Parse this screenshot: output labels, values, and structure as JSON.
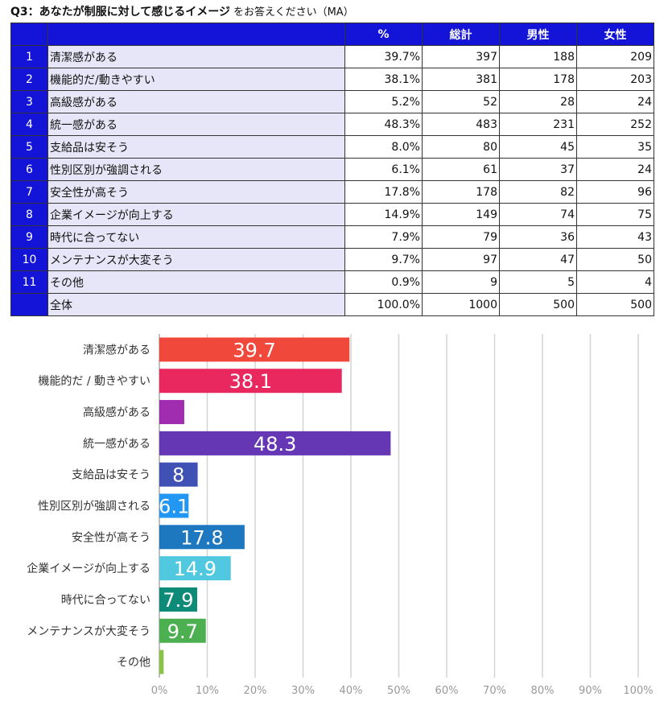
{
  "title": {
    "main": "Q3：あなたが制服に対して感じるイメージ",
    "sub": "をお答えください（MA）"
  },
  "table": {
    "headers": [
      "%",
      "総計",
      "男性",
      "女性"
    ],
    "rows": [
      {
        "no": "1",
        "label": "清潔感がある",
        "pct": "39.7%",
        "total": "397",
        "male": "188",
        "female": "209"
      },
      {
        "no": "2",
        "label": "機能的だ/動きやすい",
        "pct": "38.1%",
        "total": "381",
        "male": "178",
        "female": "203"
      },
      {
        "no": "3",
        "label": "高級感がある",
        "pct": "5.2%",
        "total": "52",
        "male": "28",
        "female": "24"
      },
      {
        "no": "4",
        "label": "統一感がある",
        "pct": "48.3%",
        "total": "483",
        "male": "231",
        "female": "252"
      },
      {
        "no": "5",
        "label": "支給品は安そう",
        "pct": "8.0%",
        "total": "80",
        "male": "45",
        "female": "35"
      },
      {
        "no": "6",
        "label": "性別区別が強調される",
        "pct": "6.1%",
        "total": "61",
        "male": "37",
        "female": "24"
      },
      {
        "no": "7",
        "label": "安全性が高そう",
        "pct": "17.8%",
        "total": "178",
        "male": "82",
        "female": "96"
      },
      {
        "no": "8",
        "label": "企業イメージが向上する",
        "pct": "14.9%",
        "total": "149",
        "male": "74",
        "female": "75"
      },
      {
        "no": "9",
        "label": "時代に合ってない",
        "pct": "7.9%",
        "total": "79",
        "male": "36",
        "female": "43"
      },
      {
        "no": "10",
        "label": "メンテナンスが大変そう",
        "pct": "9.7%",
        "total": "97",
        "male": "47",
        "female": "50"
      },
      {
        "no": "11",
        "label": "その他",
        "pct": "0.9%",
        "total": "9",
        "male": "5",
        "female": "4"
      },
      {
        "no": "",
        "label": "全体",
        "pct": "100.0%",
        "total": "1000",
        "male": "500",
        "female": "500"
      }
    ]
  },
  "chart_data": {
    "type": "bar",
    "orientation": "horizontal",
    "categories": [
      "清潔感がある",
      "機能的だ / 動きやすい",
      "高級感がある",
      "統一感がある",
      "支給品は安そう",
      "性別区別が強調される",
      "安全性が高そう",
      "企業イメージが向上する",
      "時代に合ってない",
      "メンテナンスが大変そう",
      "その他"
    ],
    "values": [
      39.7,
      38.1,
      5.2,
      48.3,
      8.0,
      6.1,
      17.8,
      14.9,
      7.9,
      9.7,
      0.9
    ],
    "data_labels": [
      "39.7",
      "38.1",
      "",
      "48.3",
      "8",
      "6.1",
      "17.8",
      "14.9",
      "7.9",
      "9.7",
      ""
    ],
    "colors": [
      "#f0483a",
      "#e8285e",
      "#a02cb0",
      "#6637b4",
      "#3f51b5",
      "#2196f3",
      "#1e78c0",
      "#4fc8e0",
      "#0e8a78",
      "#4caf50",
      "#8bc34a"
    ],
    "xlim": [
      0,
      100
    ],
    "xticks": [
      "0%",
      "10%",
      "20%",
      "30%",
      "40%",
      "50%",
      "60%",
      "70%",
      "80%",
      "90%",
      "100%"
    ],
    "grid": true
  }
}
